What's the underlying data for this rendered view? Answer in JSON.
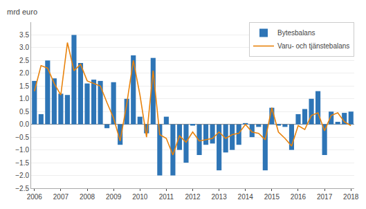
{
  "chart_data": {
    "type": "bar",
    "ylabel": "mrd euro",
    "categories": [
      "2006",
      null,
      null,
      null,
      "2007",
      null,
      null,
      null,
      "2008",
      null,
      null,
      null,
      "2009",
      null,
      null,
      null,
      "2010",
      null,
      null,
      null,
      "2011",
      null,
      null,
      null,
      "2012",
      null,
      null,
      null,
      "2013",
      null,
      null,
      null,
      "2014",
      null,
      null,
      null,
      "2015",
      null,
      null,
      null,
      "2016",
      null,
      null,
      null,
      "2017",
      null,
      null,
      null,
      "2018"
    ],
    "series": [
      {
        "name": "Bytesbalans",
        "type": "bar",
        "color": "#2e75b6",
        "values": [
          1.7,
          0.4,
          2.5,
          1.8,
          1.2,
          1.15,
          3.5,
          2.4,
          1.6,
          1.75,
          1.7,
          -0.15,
          1.65,
          -0.8,
          1.0,
          2.7,
          0.3,
          -0.35,
          2.6,
          -2.0,
          0.3,
          -2.0,
          -1.0,
          -1.5,
          -0.05,
          -1.2,
          -0.8,
          -0.75,
          -1.8,
          -1.1,
          -1.0,
          -0.8,
          0.05,
          -0.5,
          -0.1,
          -1.8,
          0.65,
          -0.05,
          -0.1,
          -1.0,
          0.4,
          0.6,
          1.0,
          1.3,
          -1.2,
          0.5,
          0.1,
          0.45,
          0.5
        ]
      },
      {
        "name": "Varu- och tjänstebalans",
        "type": "line",
        "color": "#e8820c",
        "values": [
          1.3,
          2.3,
          2.2,
          1.6,
          1.15,
          3.2,
          2.1,
          2.35,
          1.7,
          1.6,
          1.5,
          0.85,
          0.25,
          -0.65,
          0.8,
          2.5,
          1.15,
          -0.5,
          2.1,
          -0.4,
          -0.55,
          -1.2,
          -0.45,
          -0.7,
          -0.3,
          -0.65,
          -0.6,
          -0.55,
          -0.3,
          -0.55,
          -0.4,
          -0.35,
          0.0,
          -0.3,
          -0.35,
          -0.6,
          0.65,
          -0.3,
          -0.55,
          -0.85,
          -0.05,
          -0.2,
          0.35,
          0.45,
          -0.25,
          0.35,
          0.45,
          0.1,
          -0.05
        ]
      }
    ],
    "ylim": [
      -2.5,
      4.0
    ],
    "yticks": [
      {
        "value": -2.5,
        "label": "−2.5"
      },
      {
        "value": -2.0,
        "label": "−2.0"
      },
      {
        "value": -1.5,
        "label": "−1.5"
      },
      {
        "value": -1.0,
        "label": "−1.0"
      },
      {
        "value": -0.5,
        "label": "−0.5"
      },
      {
        "value": 0.0,
        "label": "0.0"
      },
      0.5,
      {
        "value": 1.0,
        "label": "1.0"
      },
      1.5,
      {
        "value": 2.0,
        "label": "2.0"
      },
      2.5,
      {
        "value": 3.0,
        "label": "3.0"
      },
      3.5
    ],
    "grid": true,
    "legend": "upper right"
  }
}
